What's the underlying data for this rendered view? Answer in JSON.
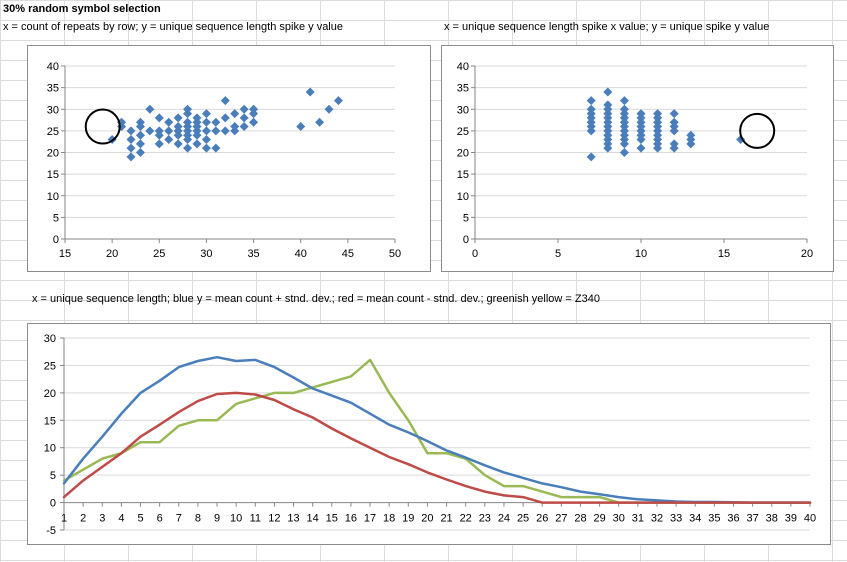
{
  "sheet": {
    "heading": "30%  random symbol selection",
    "caption1": "x = count of repeats by row; y = unique sequence length spike y value",
    "caption2": "x = unique sequence length spike x value; y = unique spike y value",
    "caption3": "x = unique sequence length; blue y = mean count + stnd. dev.; red = mean count - stnd. dev.; greenish yellow = Z340"
  },
  "colors": {
    "blue": "#4a7ebb",
    "red": "#be4b48",
    "green": "#98b954"
  },
  "chart_data": [
    {
      "type": "scatter",
      "title": "",
      "xlim": [
        15,
        50
      ],
      "ylim": [
        0,
        40
      ],
      "xticks": [
        15,
        20,
        25,
        30,
        35,
        40,
        45,
        50
      ],
      "yticks": [
        0,
        5,
        10,
        15,
        20,
        25,
        30,
        35,
        40
      ],
      "gridlines": "horizontal",
      "marker": "diamond",
      "annotation": {
        "type": "circle",
        "x": 19,
        "y": 26
      },
      "points": [
        [
          20,
          23
        ],
        [
          21,
          26
        ],
        [
          21,
          27
        ],
        [
          22,
          21
        ],
        [
          22,
          19
        ],
        [
          22,
          23
        ],
        [
          22,
          25
        ],
        [
          23,
          20
        ],
        [
          23,
          22
        ],
        [
          23,
          24
        ],
        [
          23,
          26
        ],
        [
          23,
          27
        ],
        [
          24,
          25
        ],
        [
          24,
          30
        ],
        [
          25,
          22
        ],
        [
          25,
          24
        ],
        [
          25,
          25
        ],
        [
          25,
          28
        ],
        [
          26,
          23
        ],
        [
          26,
          25
        ],
        [
          26,
          27
        ],
        [
          27,
          22
        ],
        [
          27,
          24
        ],
        [
          27,
          25
        ],
        [
          27,
          26
        ],
        [
          27,
          28
        ],
        [
          28,
          21
        ],
        [
          28,
          23
        ],
        [
          28,
          24
        ],
        [
          28,
          25
        ],
        [
          28,
          26
        ],
        [
          28,
          27
        ],
        [
          28,
          29
        ],
        [
          28,
          30
        ],
        [
          29,
          22
        ],
        [
          29,
          24
        ],
        [
          29,
          25
        ],
        [
          29,
          26
        ],
        [
          29,
          27
        ],
        [
          29,
          28
        ],
        [
          30,
          21
        ],
        [
          30,
          23
        ],
        [
          30,
          25
        ],
        [
          30,
          27
        ],
        [
          30,
          29
        ],
        [
          31,
          21
        ],
        [
          31,
          25
        ],
        [
          31,
          27
        ],
        [
          32,
          25
        ],
        [
          32,
          28
        ],
        [
          32,
          32
        ],
        [
          33,
          25
        ],
        [
          33,
          26
        ],
        [
          33,
          29
        ],
        [
          34,
          26
        ],
        [
          34,
          28
        ],
        [
          34,
          30
        ],
        [
          35,
          27
        ],
        [
          35,
          29
        ],
        [
          35,
          30
        ],
        [
          40,
          26
        ],
        [
          41,
          34
        ],
        [
          42,
          27
        ],
        [
          43,
          30
        ],
        [
          44,
          32
        ]
      ]
    },
    {
      "type": "scatter",
      "title": "",
      "xlim": [
        0,
        20
      ],
      "ylim": [
        0,
        40
      ],
      "xticks": [
        0,
        5,
        10,
        15,
        20
      ],
      "yticks": [
        0,
        5,
        10,
        15,
        20,
        25,
        30,
        35,
        40
      ],
      "gridlines": "horizontal",
      "marker": "diamond",
      "annotation": {
        "type": "circle",
        "x": 17,
        "y": 25
      },
      "points": [
        [
          7,
          19
        ],
        [
          7,
          25
        ],
        [
          7,
          26
        ],
        [
          7,
          27
        ],
        [
          7,
          28
        ],
        [
          7,
          29
        ],
        [
          7,
          30
        ],
        [
          7,
          32
        ],
        [
          8,
          21
        ],
        [
          8,
          22
        ],
        [
          8,
          23
        ],
        [
          8,
          24
        ],
        [
          8,
          25
        ],
        [
          8,
          26
        ],
        [
          8,
          27
        ],
        [
          8,
          28
        ],
        [
          8,
          29
        ],
        [
          8,
          30
        ],
        [
          8,
          31
        ],
        [
          8,
          34
        ],
        [
          9,
          20
        ],
        [
          9,
          22
        ],
        [
          9,
          23
        ],
        [
          9,
          24
        ],
        [
          9,
          25
        ],
        [
          9,
          26
        ],
        [
          9,
          27
        ],
        [
          9,
          28
        ],
        [
          9,
          29
        ],
        [
          9,
          30
        ],
        [
          9,
          32
        ],
        [
          10,
          21
        ],
        [
          10,
          23
        ],
        [
          10,
          24
        ],
        [
          10,
          25
        ],
        [
          10,
          26
        ],
        [
          10,
          27
        ],
        [
          10,
          28
        ],
        [
          10,
          29
        ],
        [
          11,
          21
        ],
        [
          11,
          22
        ],
        [
          11,
          23
        ],
        [
          11,
          24
        ],
        [
          11,
          25
        ],
        [
          11,
          26
        ],
        [
          11,
          27
        ],
        [
          11,
          28
        ],
        [
          11,
          29
        ],
        [
          12,
          21
        ],
        [
          12,
          22
        ],
        [
          12,
          25
        ],
        [
          12,
          26
        ],
        [
          12,
          27
        ],
        [
          12,
          29
        ],
        [
          13,
          22
        ],
        [
          13,
          23
        ],
        [
          13,
          24
        ],
        [
          16,
          23
        ]
      ]
    },
    {
      "type": "line",
      "title": "",
      "x": [
        1,
        2,
        3,
        4,
        5,
        6,
        7,
        8,
        9,
        10,
        11,
        12,
        13,
        14,
        15,
        16,
        17,
        18,
        19,
        20,
        21,
        22,
        23,
        24,
        25,
        26,
        27,
        28,
        29,
        30,
        31,
        32,
        33,
        34,
        35,
        36,
        37,
        38,
        39,
        40
      ],
      "ylim": [
        -5,
        30
      ],
      "yticks": [
        -5,
        0,
        5,
        10,
        15,
        20,
        25,
        30
      ],
      "gridlines": "horizontal",
      "series": [
        {
          "color_key": "blue",
          "values": [
            3.5,
            8,
            12,
            16.2,
            20,
            22.2,
            24.7,
            25.8,
            26.5,
            25.8,
            26,
            24.7,
            22.8,
            20.8,
            19.5,
            18.2,
            16.2,
            14.2,
            12.8,
            11.2,
            9.5,
            8.2,
            6.8,
            5.5,
            4.5,
            3.5,
            2.8,
            2.0,
            1.5,
            1.0,
            0.6,
            0.4,
            0.2,
            0.1,
            0.1,
            0.05,
            0,
            0,
            0,
            0
          ]
        },
        {
          "color_key": "red",
          "values": [
            1,
            4,
            6.5,
            9,
            12,
            14.2,
            16.5,
            18.5,
            19.8,
            20,
            19.7,
            18.7,
            17,
            15.5,
            13.5,
            11.7,
            10,
            8.3,
            7,
            5.5,
            4.2,
            3,
            2,
            1.3,
            1,
            0,
            0,
            0,
            0,
            0,
            0,
            0,
            0,
            0,
            0,
            0,
            0,
            0,
            0,
            0
          ]
        },
        {
          "color_key": "green",
          "values": [
            4,
            6,
            8,
            9,
            11,
            11,
            14,
            15,
            15,
            18,
            19,
            20,
            20,
            21,
            22,
            23,
            26,
            20,
            15,
            9,
            9,
            8,
            5,
            3,
            3,
            2,
            1,
            1,
            1,
            0,
            0,
            0,
            0,
            0,
            0,
            0,
            0,
            0,
            0,
            0
          ]
        }
      ]
    }
  ]
}
